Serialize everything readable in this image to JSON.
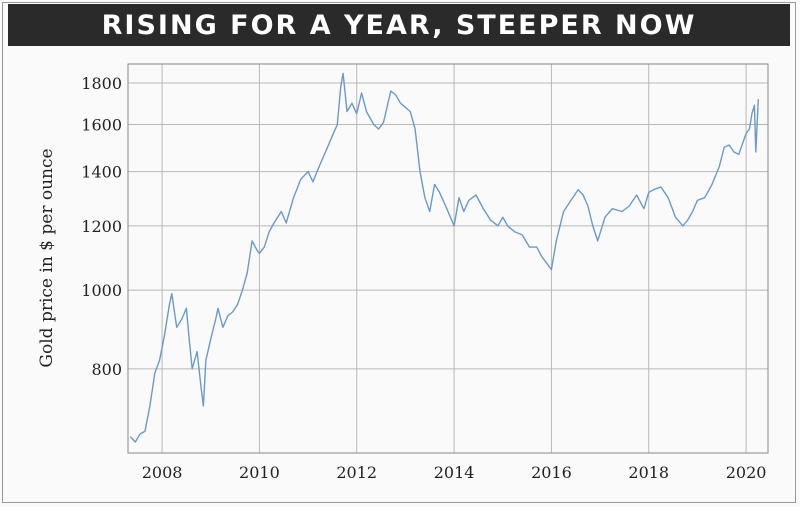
{
  "chart_data": {
    "type": "line",
    "title": "RISING FOR A YEAR, STEEPER NOW",
    "xlabel": "",
    "ylabel": "Gold price in $ per ounce",
    "xlim": [
      2007.3,
      2020.45
    ],
    "ylim": [
      630,
      1900
    ],
    "y_scale": "log",
    "y_ticks": [
      800,
      1000,
      1200,
      1400,
      1600,
      1800
    ],
    "x_ticks": [
      2008,
      2010,
      2012,
      2014,
      2016,
      2018,
      2020
    ],
    "x_tick_labels": [
      "2008",
      "2010",
      "2012",
      "2014",
      "2016",
      "2018",
      "2020"
    ],
    "y_tick_labels": [
      "800",
      "1000",
      "1200",
      "1400",
      "1600",
      "1800"
    ],
    "grid": true,
    "colors": {
      "line": "#6b9ac8",
      "grid": "#b8b8b8",
      "title_bg": "#2a2a2a"
    },
    "series": [
      {
        "x": [
          2007.35,
          2007.45,
          2007.55,
          2007.65,
          2007.75,
          2007.85,
          2007.95,
          2008.05,
          2008.15,
          2008.2,
          2008.3,
          2008.4,
          2008.5,
          2008.55,
          2008.62,
          2008.72,
          2008.8,
          2008.85,
          2008.9,
          2009.0,
          2009.1,
          2009.15,
          2009.25,
          2009.35,
          2009.45,
          2009.55,
          2009.65,
          2009.75,
          2009.85,
          2009.95,
          2010.0,
          2010.1,
          2010.2,
          2010.3,
          2010.45,
          2010.55,
          2010.7,
          2010.85,
          2011.0,
          2011.1,
          2011.25,
          2011.4,
          2011.5,
          2011.6,
          2011.67,
          2011.72,
          2011.8,
          2011.9,
          2012.0,
          2012.1,
          2012.2,
          2012.35,
          2012.45,
          2012.55,
          2012.7,
          2012.8,
          2012.9,
          2013.0,
          2013.1,
          2013.2,
          2013.3,
          2013.4,
          2013.5,
          2013.6,
          2013.7,
          2013.85,
          2014.0,
          2014.1,
          2014.2,
          2014.3,
          2014.45,
          2014.6,
          2014.75,
          2014.9,
          2015.0,
          2015.1,
          2015.25,
          2015.4,
          2015.55,
          2015.7,
          2015.8,
          2015.9,
          2016.0,
          2016.1,
          2016.25,
          2016.4,
          2016.55,
          2016.65,
          2016.75,
          2016.85,
          2016.95,
          2017.1,
          2017.25,
          2017.45,
          2017.6,
          2017.75,
          2017.9,
          2018.0,
          2018.1,
          2018.25,
          2018.4,
          2018.55,
          2018.7,
          2018.8,
          2018.9,
          2019.0,
          2019.15,
          2019.3,
          2019.45,
          2019.55,
          2019.65,
          2019.75,
          2019.85,
          2019.95,
          2020.0,
          2020.07,
          2020.12,
          2020.17,
          2020.2,
          2020.25
        ],
        "y": [
          660,
          650,
          665,
          670,
          720,
          790,
          820,
          880,
          960,
          990,
          900,
          920,
          950,
          880,
          800,
          840,
          760,
          720,
          820,
          870,
          920,
          950,
          900,
          930,
          940,
          960,
          1000,
          1050,
          1150,
          1120,
          1110,
          1130,
          1180,
          1210,
          1250,
          1210,
          1300,
          1370,
          1400,
          1360,
          1430,
          1500,
          1550,
          1600,
          1780,
          1850,
          1660,
          1700,
          1650,
          1750,
          1660,
          1600,
          1580,
          1610,
          1760,
          1740,
          1700,
          1680,
          1660,
          1580,
          1400,
          1300,
          1250,
          1350,
          1320,
          1260,
          1200,
          1300,
          1250,
          1290,
          1310,
          1260,
          1220,
          1200,
          1230,
          1200,
          1180,
          1170,
          1130,
          1130,
          1100,
          1080,
          1060,
          1150,
          1250,
          1290,
          1330,
          1310,
          1270,
          1200,
          1150,
          1230,
          1260,
          1250,
          1270,
          1310,
          1260,
          1320,
          1330,
          1340,
          1300,
          1230,
          1200,
          1220,
          1250,
          1290,
          1300,
          1350,
          1420,
          1500,
          1510,
          1480,
          1470,
          1530,
          1560,
          1580,
          1650,
          1690,
          1480,
          1720
        ]
      }
    ]
  }
}
